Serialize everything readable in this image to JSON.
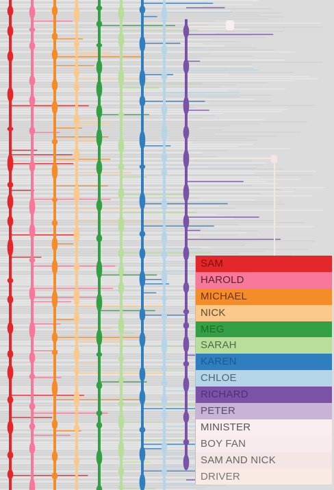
{
  "legend": {
    "items": [
      {
        "label": "SAM",
        "color": "#e3272a",
        "text_color": "#7a1010"
      },
      {
        "label": "HAROLD",
        "color": "#f7789a",
        "text_color": "#5b2130"
      },
      {
        "label": "MICHAEL",
        "color": "#f58c2a",
        "text_color": "#6a3508"
      },
      {
        "label": "NICK",
        "color": "#fac98b",
        "text_color": "#5e4a30"
      },
      {
        "label": "MEG",
        "color": "#34a046",
        "text_color": "#1f6b28"
      },
      {
        "label": "SARAH",
        "color": "#b8de9c",
        "text_color": "#4f6b40"
      },
      {
        "label": "KAREN",
        "color": "#2f7ebf",
        "text_color": "#1c5a8e"
      },
      {
        "label": "CHLOE",
        "color": "#b5d6e8",
        "text_color": "#4e6470"
      },
      {
        "label": "RICHARD",
        "color": "#7a53a6",
        "text_color": "#4f3073"
      },
      {
        "label": "PETER",
        "color": "#c8b4d6",
        "text_color": "#5a4d66"
      },
      {
        "label": "MINISTER",
        "color": "#faeef0",
        "text_color": "#555555"
      },
      {
        "label": "BOY FAN",
        "color": "#f8ecee",
        "text_color": "#666666"
      },
      {
        "label": "SAM AND NICK",
        "color": "#f3e6e4",
        "text_color": "#666666"
      },
      {
        "label": "DRIVER",
        "color": "#f9ebe4",
        "text_color": "#777777"
      }
    ]
  }
}
